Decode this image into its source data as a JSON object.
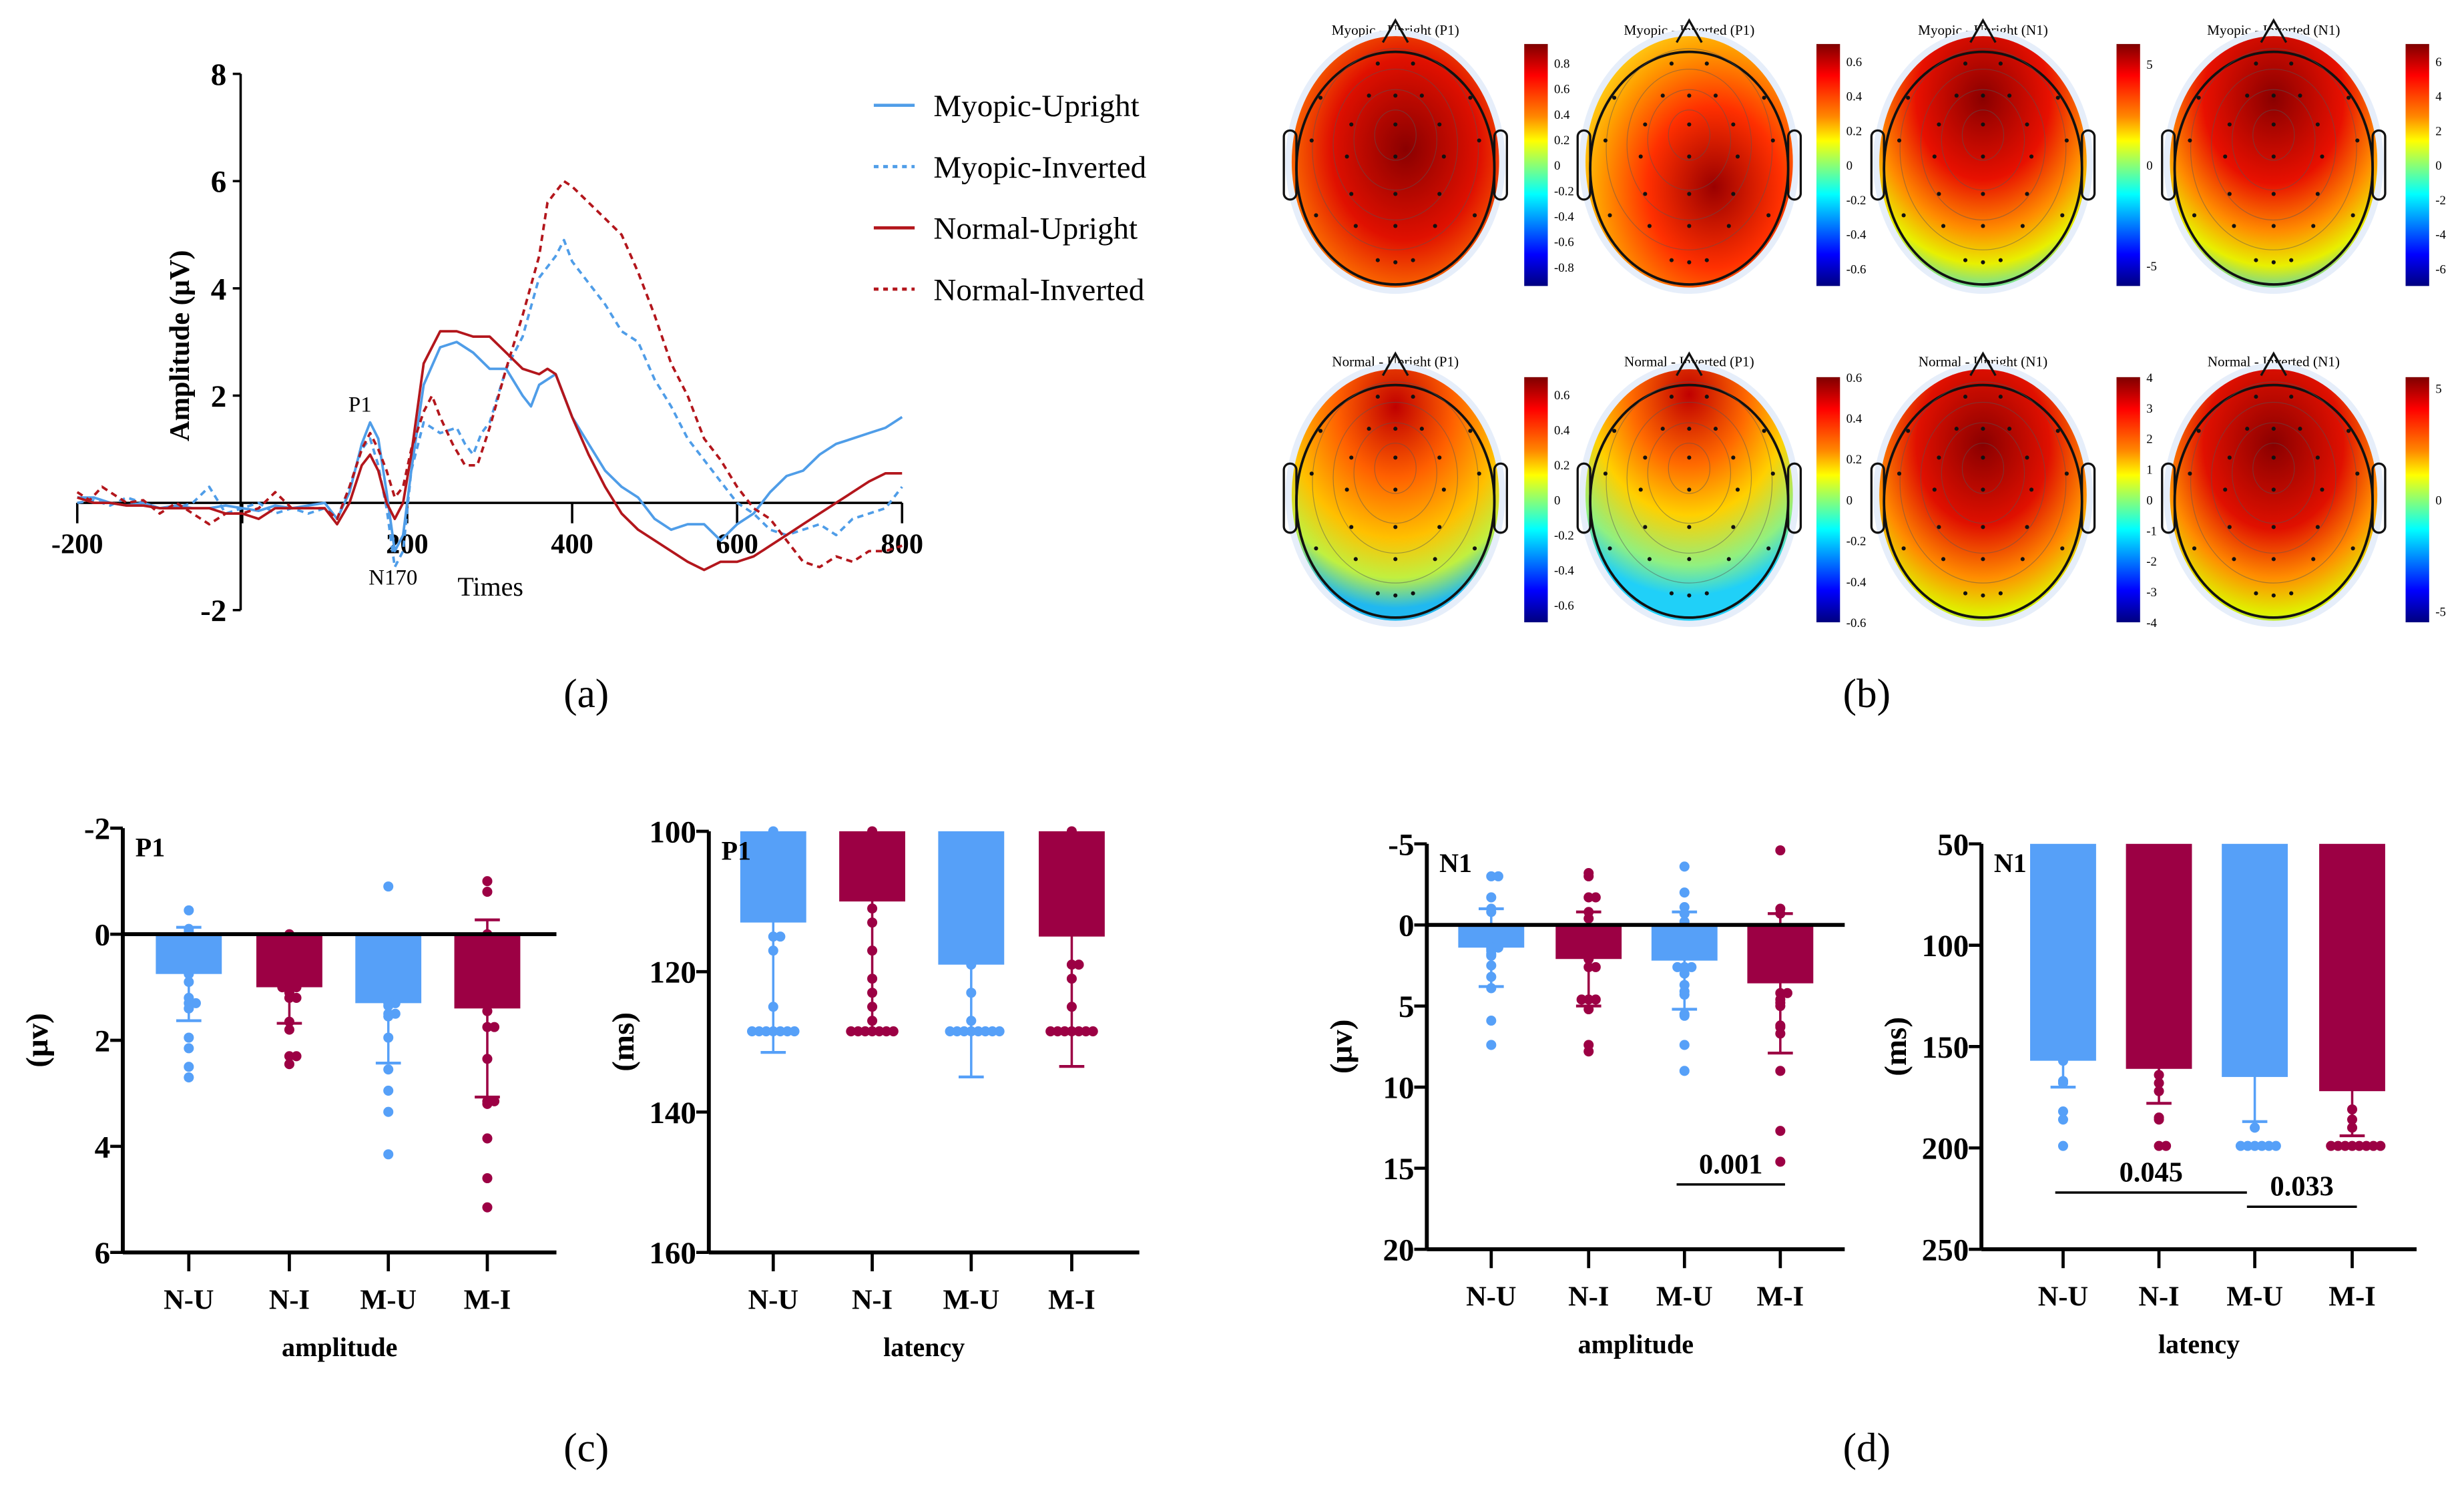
{
  "panel_labels": {
    "a": "(a)",
    "b": "(b)",
    "c": "(c)",
    "d": "(d)"
  },
  "colors": {
    "blue": "#56a0f8",
    "maroon": "#9c0044",
    "line_blue": "#4f9de8",
    "line_red": "#b3161c"
  },
  "chart_data": [
    {
      "id": "a",
      "type": "line",
      "xlabel": "Times",
      "ylabel": "Amplitude (μV)",
      "xlim": [
        -200,
        800
      ],
      "ylim": [
        -2,
        8
      ],
      "xticks": [
        -200,
        200,
        400,
        600,
        800
      ],
      "yticks": [
        -2,
        2,
        4,
        6,
        8
      ],
      "annotations": [
        {
          "text": "P1",
          "x": 155,
          "y": 1.6
        },
        {
          "text": "N170",
          "x": 185,
          "y": -1.2
        }
      ],
      "legend": "top-right",
      "series": [
        {
          "name": "Myopic-Upright",
          "style": "solid",
          "color": "#4f9de8",
          "x": [
            -200,
            -180,
            -160,
            -140,
            -120,
            -100,
            -80,
            -60,
            -40,
            -20,
            0,
            20,
            40,
            60,
            80,
            100,
            115,
            130,
            145,
            155,
            165,
            175,
            185,
            195,
            205,
            220,
            240,
            260,
            280,
            300,
            320,
            340,
            350,
            360,
            380,
            400,
            420,
            440,
            460,
            480,
            500,
            520,
            540,
            560,
            580,
            600,
            620,
            640,
            660,
            680,
            700,
            720,
            740,
            760,
            780,
            800
          ],
          "y": [
            0.1,
            0.1,
            0.0,
            -0.05,
            0.0,
            -0.1,
            -0.05,
            -0.1,
            -0.1,
            -0.05,
            -0.1,
            -0.15,
            -0.05,
            -0.1,
            -0.05,
            0.0,
            -0.3,
            0.2,
            1.1,
            1.5,
            1.2,
            0.2,
            -0.9,
            -0.6,
            0.6,
            2.2,
            2.9,
            3.0,
            2.8,
            2.5,
            2.5,
            2.0,
            1.8,
            2.2,
            2.4,
            1.6,
            1.1,
            0.6,
            0.3,
            0.1,
            -0.3,
            -0.5,
            -0.4,
            -0.4,
            -0.7,
            -0.4,
            -0.2,
            0.2,
            0.5,
            0.6,
            0.9,
            1.1,
            1.2,
            1.3,
            1.4,
            1.6
          ]
        },
        {
          "name": "Myopic-Inverted",
          "style": "dashed",
          "color": "#4f9de8",
          "x": [
            -200,
            -180,
            -160,
            -140,
            -120,
            -100,
            -80,
            -60,
            -40,
            -20,
            0,
            20,
            40,
            60,
            80,
            100,
            115,
            130,
            145,
            155,
            165,
            175,
            185,
            195,
            205,
            220,
            240,
            260,
            270,
            280,
            290,
            300,
            320,
            340,
            360,
            380,
            390,
            400,
            420,
            440,
            460,
            480,
            500,
            520,
            540,
            560,
            580,
            600,
            620,
            640,
            660,
            680,
            700,
            720,
            740,
            760,
            780,
            800
          ],
          "y": [
            0.0,
            0.05,
            -0.05,
            0.1,
            0.0,
            -0.1,
            -0.1,
            0.0,
            0.3,
            -0.2,
            -0.1,
            0.0,
            -0.2,
            -0.1,
            -0.2,
            -0.1,
            -0.3,
            0.3,
            1.0,
            1.2,
            0.7,
            -0.1,
            -1.2,
            -0.9,
            0.6,
            1.5,
            1.3,
            1.4,
            1.1,
            0.9,
            1.3,
            1.5,
            2.5,
            3.1,
            4.2,
            4.6,
            4.9,
            4.5,
            4.1,
            3.7,
            3.2,
            3.0,
            2.3,
            1.8,
            1.2,
            0.8,
            0.4,
            0.0,
            -0.2,
            -0.5,
            -0.6,
            -0.5,
            -0.4,
            -0.6,
            -0.3,
            -0.2,
            -0.1,
            0.3
          ]
        },
        {
          "name": "Normal-Upright",
          "style": "solid",
          "color": "#b3161c",
          "x": [
            -200,
            -180,
            -160,
            -140,
            -120,
            -100,
            -80,
            -60,
            -40,
            -20,
            0,
            20,
            40,
            60,
            80,
            100,
            115,
            130,
            145,
            155,
            165,
            175,
            185,
            195,
            205,
            220,
            240,
            260,
            280,
            300,
            320,
            340,
            360,
            370,
            380,
            400,
            420,
            440,
            460,
            480,
            500,
            520,
            540,
            560,
            580,
            600,
            620,
            640,
            660,
            680,
            700,
            720,
            740,
            760,
            780,
            800
          ],
          "y": [
            0.1,
            0.0,
            0.0,
            -0.05,
            -0.05,
            -0.1,
            -0.1,
            -0.1,
            -0.1,
            -0.2,
            -0.2,
            -0.3,
            -0.1,
            -0.1,
            -0.1,
            -0.1,
            -0.4,
            0.0,
            0.7,
            0.9,
            0.6,
            0.0,
            -0.3,
            0.0,
            0.9,
            2.6,
            3.2,
            3.2,
            3.1,
            3.1,
            2.8,
            2.5,
            2.4,
            2.5,
            2.4,
            1.6,
            0.9,
            0.3,
            -0.2,
            -0.5,
            -0.7,
            -0.9,
            -1.1,
            -1.25,
            -1.1,
            -1.1,
            -1.0,
            -0.8,
            -0.6,
            -0.4,
            -0.2,
            0.0,
            0.2,
            0.4,
            0.55,
            0.55
          ]
        },
        {
          "name": "Normal-Inverted",
          "style": "dashed",
          "color": "#b3161c",
          "x": [
            -200,
            -185,
            -170,
            -155,
            -140,
            -120,
            -100,
            -80,
            -60,
            -40,
            -20,
            0,
            20,
            40,
            60,
            80,
            100,
            115,
            130,
            145,
            155,
            165,
            175,
            185,
            195,
            205,
            220,
            230,
            240,
            255,
            270,
            285,
            300,
            320,
            340,
            360,
            370,
            390,
            400,
            420,
            440,
            460,
            480,
            500,
            520,
            540,
            560,
            580,
            600,
            620,
            640,
            660,
            680,
            700,
            720,
            740,
            760,
            780,
            800
          ],
          "y": [
            0.2,
            0.05,
            0.3,
            0.15,
            0.0,
            0.05,
            -0.2,
            0.0,
            -0.2,
            -0.4,
            -0.2,
            -0.2,
            -0.1,
            0.2,
            -0.1,
            -0.1,
            -0.1,
            -0.3,
            0.3,
            1.0,
            1.3,
            1.0,
            0.6,
            0.1,
            0.3,
            1.0,
            1.7,
            2.0,
            1.6,
            1.1,
            0.7,
            0.7,
            1.4,
            2.5,
            3.5,
            4.6,
            5.6,
            6.0,
            5.9,
            5.6,
            5.3,
            5.0,
            4.3,
            3.5,
            2.6,
            2.0,
            1.2,
            0.8,
            0.3,
            -0.1,
            -0.3,
            -0.7,
            -1.1,
            -1.2,
            -1.0,
            -1.1,
            -0.9,
            -0.9,
            -0.8
          ]
        }
      ]
    },
    {
      "id": "b",
      "type": "heatmap",
      "maps": [
        {
          "title": "Myopic - Upright (P1)",
          "ticks": [
            0.8,
            0.6,
            0.4,
            0.2,
            0,
            -0.2,
            -0.4,
            -0.6,
            -0.8
          ],
          "clim": [
            -0.95,
            0.95
          ]
        },
        {
          "title": "Myopic - Inverted (P1)",
          "ticks": [
            0.6,
            0.4,
            0.2,
            0,
            -0.2,
            -0.4,
            -0.6
          ],
          "clim": [
            -0.7,
            0.7
          ]
        },
        {
          "title": "Myopic - Upright (N1)",
          "ticks": [
            5,
            0,
            -5
          ],
          "clim": [
            -6,
            6
          ]
        },
        {
          "title": "Myopic - Inverted (N1)",
          "ticks": [
            6,
            4,
            2,
            0,
            -2,
            -4,
            -6
          ],
          "clim": [
            -7,
            7
          ]
        },
        {
          "title": "Normal - Upright (P1)",
          "ticks": [
            0.6,
            0.4,
            0.2,
            0,
            -0.2,
            -0.4,
            -0.6
          ],
          "clim": [
            -0.7,
            0.7
          ]
        },
        {
          "title": "Normal - Inverted (P1)",
          "ticks": [
            0.6,
            0.4,
            0.2,
            0,
            -0.2,
            -0.4,
            -0.6
          ],
          "clim": [
            -0.6,
            0.6
          ]
        },
        {
          "title": "Normal - Upright (N1)",
          "ticks": [
            4,
            3,
            2,
            1,
            0,
            -1,
            -2,
            -3,
            -4
          ],
          "clim": [
            -4,
            4
          ]
        },
        {
          "title": "Normal - Inverted (N1)",
          "ticks": [
            5,
            0,
            -5
          ],
          "clim": [
            -5.5,
            5.5
          ]
        }
      ]
    },
    {
      "id": "c-amplitude",
      "type": "bar",
      "inset_label": "P1",
      "ylabel": "(μv)",
      "xlabel": "amplitude",
      "categories": [
        "N-U",
        "N-I",
        "M-U",
        "M-I"
      ],
      "ylim": [
        -2,
        6
      ],
      "yticks": [
        -2,
        0,
        2,
        4,
        6
      ],
      "values": [
        0.75,
        1.0,
        1.3,
        1.4
      ],
      "sd": [
        0.88,
        0.68,
        1.13,
        1.67
      ],
      "points": [
        [
          2.7,
          2.5,
          2.15,
          1.95,
          1.4,
          1.3,
          1.3,
          1.2,
          0.9,
          0.75,
          0.1,
          0,
          -0.1,
          -0.05,
          -0.45
        ],
        [
          2.45,
          2.3,
          2.3,
          1.8,
          1.65,
          1.2,
          1.2,
          1.1,
          1.0,
          1.0,
          1.0,
          0.9,
          0
        ],
        [
          4.15,
          3.35,
          2.95,
          2.55,
          1.95,
          1.55,
          1.5,
          1.5,
          1.35,
          1.3,
          1.3,
          -0.9
        ],
        [
          5.15,
          4.6,
          3.85,
          3.2,
          3.15,
          3.15,
          2.35,
          1.75,
          1.75,
          1.45,
          0,
          -0.8,
          -1.0
        ]
      ],
      "significance": []
    },
    {
      "id": "c-latency",
      "type": "bar",
      "inset_label": "P1",
      "ylabel": "(ms)",
      "xlabel": "latency",
      "categories": [
        "N-U",
        "N-I",
        "M-U",
        "M-I"
      ],
      "ylim": [
        100,
        160
      ],
      "yticks": [
        100,
        120,
        140,
        160
      ],
      "values": [
        113,
        110,
        119,
        115
      ],
      "sd": [
        18.5,
        18.5,
        16,
        18.5
      ],
      "points": [
        [
          128.5,
          128.5,
          128.5,
          128.5,
          128.5,
          128.5,
          128.5,
          125,
          117,
          115,
          115,
          100
        ],
        [
          128.5,
          128.5,
          128.5,
          128.5,
          128.5,
          128.5,
          128.5,
          127,
          125,
          123,
          121,
          117,
          113,
          111,
          100
        ],
        [
          128.5,
          128.5,
          128.5,
          128.5,
          128.5,
          128.5,
          128.5,
          128.5,
          127,
          123,
          119
        ],
        [
          128.5,
          128.5,
          128.5,
          128.5,
          128.5,
          128.5,
          128.5,
          125,
          121,
          119,
          119,
          100
        ]
      ],
      "significance": []
    },
    {
      "id": "d-amplitude",
      "type": "bar",
      "inset_label": "N1",
      "ylabel": "(μv)",
      "xlabel": "amplitude",
      "categories": [
        "N-U",
        "N-I",
        "M-U",
        "M-I"
      ],
      "ylim": [
        -5,
        20
      ],
      "yticks": [
        -5,
        0,
        5,
        10,
        15,
        20
      ],
      "values": [
        1.4,
        2.1,
        2.2,
        3.6
      ],
      "sd": [
        2.4,
        2.9,
        3.0,
        4.3
      ],
      "points": [
        [
          7.4,
          5.9,
          3.9,
          3.2,
          2.5,
          1.8,
          1.9,
          1.6,
          1.5,
          1.4,
          1.4,
          -0.8,
          -1.0,
          -1.7,
          -3.0,
          -3.0
        ],
        [
          7.8,
          7.4,
          5.2,
          4.6,
          4.6,
          4.6,
          2.6,
          2.6,
          2.1,
          -0.4,
          -0.8,
          -1.7,
          -1.7,
          -3.0,
          -3.2
        ],
        [
          9.0,
          7.4,
          5.6,
          5.5,
          4.3,
          4.1,
          3.7,
          3.0,
          2.6,
          2.6,
          2.6,
          -0.2,
          -0.7,
          -1.1,
          -2.0,
          -3.6
        ],
        [
          14.6,
          12.7,
          9.0,
          6.7,
          6.3,
          6.2,
          5.0,
          4.8,
          4.6,
          4.2,
          4.2,
          -0.7,
          -1.0,
          -4.6
        ]
      ],
      "significance": [
        {
          "from": "M-U",
          "to": "M-I",
          "p": "0.001",
          "y": 16
        }
      ]
    },
    {
      "id": "d-latency",
      "type": "bar",
      "inset_label": "N1",
      "ylabel": "(ms)",
      "xlabel": "latency",
      "categories": [
        "N-U",
        "N-I",
        "M-U",
        "M-I"
      ],
      "ylim": [
        50,
        250
      ],
      "yticks": [
        50,
        100,
        150,
        200,
        250
      ],
      "values": [
        157,
        161,
        165,
        172
      ],
      "sd": [
        13,
        17,
        22,
        22
      ],
      "points": [
        [
          199,
          186,
          182,
          168,
          167,
          157
        ],
        [
          199,
          199,
          186,
          185,
          172,
          168,
          164
        ],
        [
          199,
          199,
          199,
          199,
          199,
          199,
          190
        ],
        [
          199,
          199,
          199,
          199,
          199,
          199,
          199,
          199,
          190,
          186,
          181
        ]
      ],
      "significance": [
        {
          "from": "N-U",
          "to": "M-U",
          "p": "0.045",
          "y": 222
        },
        {
          "from": "M-U",
          "to": "M-I",
          "p": "0.033",
          "y": 229
        }
      ]
    }
  ]
}
